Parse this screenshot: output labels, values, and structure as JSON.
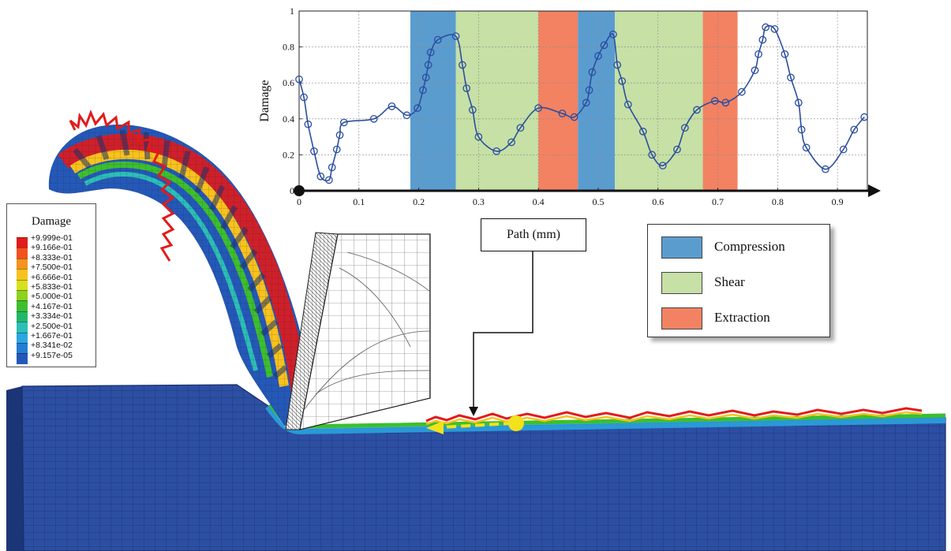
{
  "chart_data": {
    "type": "line",
    "ylabel": "Damage",
    "xlabel": "Path (mm)",
    "x_ticks": [
      "0",
      "0.1",
      "0.2",
      "0.3",
      "0.4",
      "0.5",
      "0.6",
      "0.7",
      "0.8",
      "0.9"
    ],
    "y_ticks": [
      "0",
      "0.2",
      "0.4",
      "0.6",
      "0.8",
      "1"
    ],
    "xlim": [
      0,
      0.95
    ],
    "ylim": [
      0,
      1
    ],
    "grid": true,
    "series": [
      {
        "color": "#2b4ea0",
        "marker": "circle",
        "points": [
          [
            0.0,
            0.62
          ],
          [
            0.008,
            0.52
          ],
          [
            0.015,
            0.37
          ],
          [
            0.025,
            0.22
          ],
          [
            0.036,
            0.08
          ],
          [
            0.05,
            0.06
          ],
          [
            0.055,
            0.13
          ],
          [
            0.063,
            0.23
          ],
          [
            0.068,
            0.31
          ],
          [
            0.075,
            0.38
          ],
          [
            0.125,
            0.4
          ],
          [
            0.155,
            0.47
          ],
          [
            0.18,
            0.42
          ],
          [
            0.198,
            0.46
          ],
          [
            0.207,
            0.56
          ],
          [
            0.212,
            0.63
          ],
          [
            0.216,
            0.7
          ],
          [
            0.22,
            0.77
          ],
          [
            0.232,
            0.84
          ],
          [
            0.262,
            0.86
          ],
          [
            0.273,
            0.7
          ],
          [
            0.28,
            0.57
          ],
          [
            0.29,
            0.45
          ],
          [
            0.3,
            0.3
          ],
          [
            0.33,
            0.22
          ],
          [
            0.355,
            0.27
          ],
          [
            0.37,
            0.35
          ],
          [
            0.4,
            0.46
          ],
          [
            0.44,
            0.43
          ],
          [
            0.46,
            0.41
          ],
          [
            0.48,
            0.49
          ],
          [
            0.485,
            0.56
          ],
          [
            0.49,
            0.66
          ],
          [
            0.5,
            0.75
          ],
          [
            0.51,
            0.81
          ],
          [
            0.525,
            0.87
          ],
          [
            0.532,
            0.7
          ],
          [
            0.54,
            0.61
          ],
          [
            0.55,
            0.48
          ],
          [
            0.575,
            0.33
          ],
          [
            0.59,
            0.2
          ],
          [
            0.608,
            0.14
          ],
          [
            0.632,
            0.23
          ],
          [
            0.645,
            0.35
          ],
          [
            0.665,
            0.45
          ],
          [
            0.695,
            0.5
          ],
          [
            0.713,
            0.49
          ],
          [
            0.74,
            0.55
          ],
          [
            0.762,
            0.67
          ],
          [
            0.768,
            0.76
          ],
          [
            0.775,
            0.84
          ],
          [
            0.78,
            0.91
          ],
          [
            0.795,
            0.9
          ],
          [
            0.812,
            0.76
          ],
          [
            0.822,
            0.63
          ],
          [
            0.835,
            0.49
          ],
          [
            0.84,
            0.34
          ],
          [
            0.848,
            0.24
          ],
          [
            0.88,
            0.12
          ],
          [
            0.91,
            0.23
          ],
          [
            0.928,
            0.34
          ],
          [
            0.945,
            0.41
          ]
        ]
      }
    ],
    "bands": [
      {
        "category": "Compression",
        "from": 0.186,
        "to": 0.262
      },
      {
        "category": "Shear",
        "from": 0.262,
        "to": 0.4
      },
      {
        "category": "Extraction",
        "from": 0.4,
        "to": 0.466
      },
      {
        "category": "Compression",
        "from": 0.466,
        "to": 0.528
      },
      {
        "category": "Shear",
        "from": 0.528,
        "to": 0.675
      },
      {
        "category": "Extraction",
        "from": 0.675,
        "to": 0.733
      }
    ]
  },
  "band_legend": [
    {
      "label": "Compression",
      "color": "#5b9ccf"
    },
    {
      "label": "Shear",
      "color": "#c6e0a5"
    },
    {
      "label": "Extraction",
      "color": "#f28262"
    }
  ],
  "contour_legend": {
    "title": "Damage",
    "levels": [
      "+9.999e-01",
      "+9.166e-01",
      "+8.333e-01",
      "+7.500e-01",
      "+6.666e-01",
      "+5.833e-01",
      "+5.000e-01",
      "+4.167e-01",
      "+3.334e-01",
      "+2.500e-01",
      "+1.667e-01",
      "+8.341e-02",
      "+9.157e-05"
    ],
    "colors": [
      "#e21b1b",
      "#f2531e",
      "#f6921e",
      "#f8c21d",
      "#d8e01d",
      "#8fd11f",
      "#3dbf2d",
      "#22b86a",
      "#2bbfb5",
      "#2aa7e0",
      "#237fd4",
      "#2458b8"
    ]
  },
  "path_label": "Path (mm)"
}
